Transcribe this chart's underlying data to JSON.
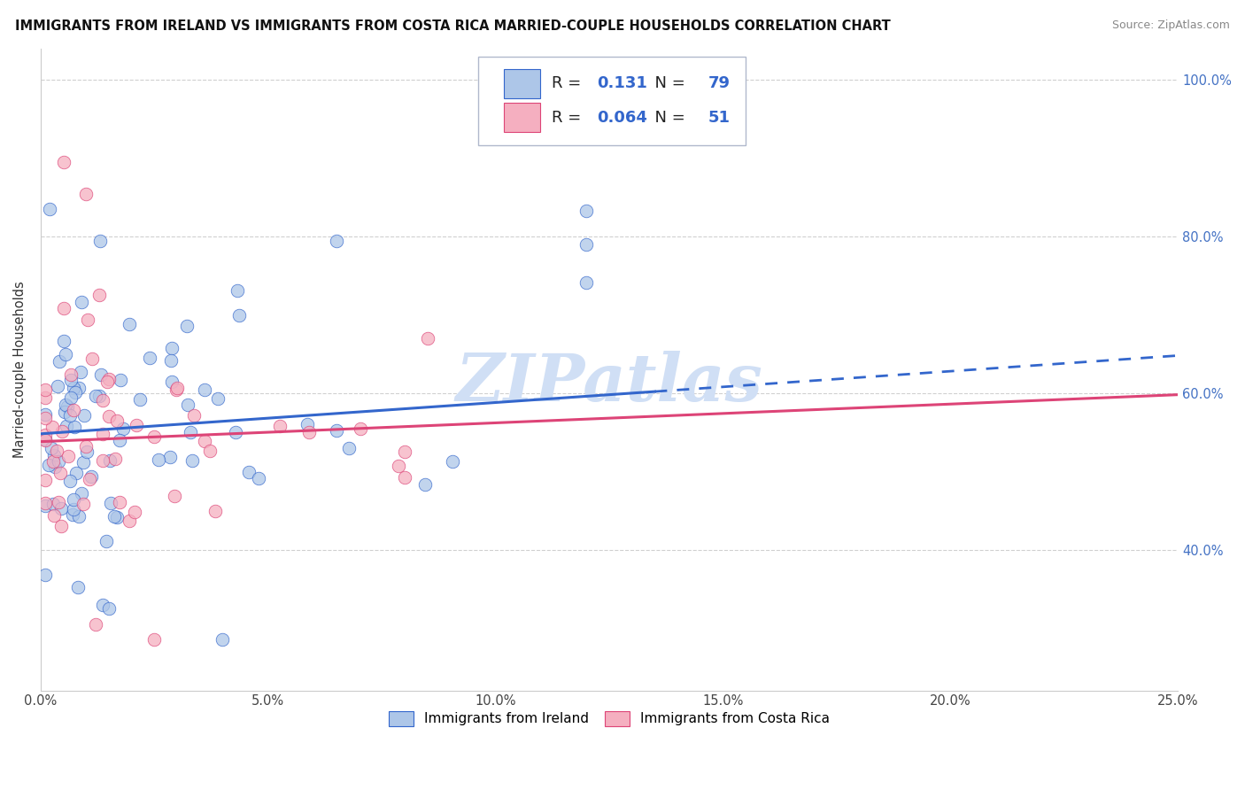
{
  "title": "IMMIGRANTS FROM IRELAND VS IMMIGRANTS FROM COSTA RICA MARRIED-COUPLE HOUSEHOLDS CORRELATION CHART",
  "source": "Source: ZipAtlas.com",
  "ylabel": "Married-couple Households",
  "x_min": 0.0,
  "x_max": 0.25,
  "y_min": 0.22,
  "y_max": 1.04,
  "yticks": [
    0.4,
    0.6,
    0.8,
    1.0
  ],
  "ytick_labels": [
    "40.0%",
    "60.0%",
    "80.0%",
    "100.0%"
  ],
  "xticks": [
    0.0,
    0.05,
    0.1,
    0.15,
    0.2,
    0.25
  ],
  "xtick_labels": [
    "0.0%",
    "5.0%",
    "10.0%",
    "15.0%",
    "20.0%",
    "25.0%"
  ],
  "legend1_label": "Immigrants from Ireland",
  "legend2_label": "Immigrants from Costa Rica",
  "R_ireland": 0.131,
  "N_ireland": 79,
  "R_costarica": 0.064,
  "N_costarica": 51,
  "color_ireland": "#adc6e8",
  "color_costarica": "#f5afc0",
  "line_color_ireland": "#3366cc",
  "line_color_costarica": "#dd4477",
  "watermark": "ZIPatlas",
  "watermark_color": "#d0dff5",
  "trend_ire_x0": 0.0,
  "trend_ire_y0": 0.548,
  "trend_ire_x1": 0.25,
  "trend_ire_y1": 0.648,
  "trend_ire_solid_end": 0.135,
  "trend_cr_x0": 0.0,
  "trend_cr_y0": 0.538,
  "trend_cr_x1": 0.25,
  "trend_cr_y1": 0.598
}
